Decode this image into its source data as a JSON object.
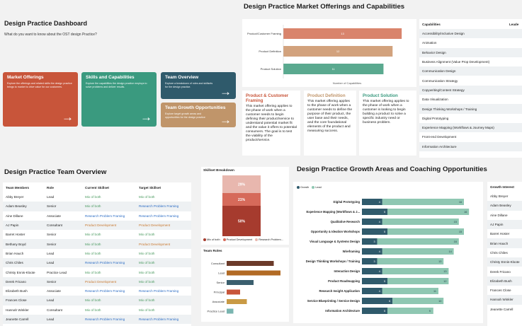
{
  "dashboard": {
    "title": "Design Practice Dashboard",
    "question": "What do you want to know about the OST design Practice?",
    "tiles": [
      {
        "title": "Market Offerings",
        "desc": "Explore the offerings and related skills the design practice brings to market to drive value for our customers.",
        "color": "#c8553a"
      },
      {
        "title": "Skills and Capabilities",
        "desc": "Explore the capabilities the design practice employs to solve problems and deliver results.",
        "color": "#3a9a7f"
      },
      {
        "title": "Team Overview",
        "desc": "Explore a breakdown of roles and skillsets for the design practice.",
        "color": "#2f5a6b"
      },
      {
        "title": "Team Growth Opportunities",
        "desc": "Explore target growth areas and opportunities for the design practice",
        "color": "#c0956a"
      }
    ],
    "arrow": "→"
  },
  "market": {
    "title": "Design Practice Market Offerings and Capabilities",
    "xlabel": "Number of Capabilities",
    "descriptions": [
      {
        "title": "Product & Customer Framing",
        "color": "#c8553a",
        "text": "This market offering applies to the phase of work when a customer needs to begin defining their product/service to understand potential market fit and the value it offers to potential consumers. The goal is to test the viability of the product/service."
      },
      {
        "title": "Product Definition",
        "color": "#c0956a",
        "text": "This market offering applies to the phase of work when a customer needs to define the purpose of their product, the user base and their needs, and the core foundational elements of the product and measuring success."
      },
      {
        "title": "Product Solution",
        "color": "#3a9a7f",
        "text": "This market offering applies to the phase of work when a customer is looking to begin building a product to solve a specific industry need or business problem."
      }
    ]
  },
  "capabilities": {
    "header": "Capabilities",
    "header2": "Leade",
    "items": [
      "Accessibility/Inclusive Design",
      "Animation",
      "Behavior Design",
      "Business Alignment (Value Prop Development)",
      "Communication Design",
      "Communication Strategy",
      "Copywriting/Content Strategy",
      "Data Visualization",
      "Design Thinking Workshops / Training",
      "Digital Prototyping",
      "Experience Mapping (Workflows & Journey Maps)",
      "Front-end Development",
      "Information Architecture"
    ]
  },
  "team": {
    "title": "Design Practice Team Overview",
    "columns": [
      "Team Members",
      "Role",
      "Current Skillset",
      "Target Skillset"
    ],
    "rows": [
      [
        "Abby Breyer",
        "Lead",
        "Mix of both",
        "Mix of both"
      ],
      [
        "Adam Beasley",
        "Senior",
        "Mix of both",
        "Research Problem Framing"
      ],
      [
        "Aine Dillane",
        "Associate",
        "Research Problem Framing",
        "Research Problem Framing"
      ],
      [
        "AJ Papin",
        "Consultant",
        "Product Development",
        "Product Development"
      ],
      [
        "Barret Hoster",
        "Senior",
        "Mix of both",
        "Mix of both"
      ],
      [
        "Bethany Boyd",
        "Senior",
        "Mix of both",
        "Product Development"
      ],
      [
        "Brian Hauch",
        "Lead",
        "Mix of both",
        "Mix of both"
      ],
      [
        "Chris Chiles",
        "Lead",
        "Research Problem Framing",
        "Mix of both"
      ],
      [
        "Christy Ennis-Kloote",
        "Practice Lead",
        "Mix of both",
        "Mix of both"
      ],
      [
        "Derek Fricano",
        "Senior",
        "Product Development",
        "Mix of both"
      ],
      [
        "Elizabeth Bush",
        "Associate",
        "Research Problem Framing",
        "Research Problem Framing"
      ],
      [
        "Frances Close",
        "Lead",
        "Mix of both",
        "Mix of both"
      ],
      [
        "Hannah Winkler",
        "Consultant",
        "Mix of both",
        "Mix of both"
      ],
      [
        "Jeanette Carrell",
        "Lead",
        "Research Problem Framing",
        "Research Problem Framing"
      ]
    ]
  },
  "skillset": {
    "title": "Skillset Breakdown",
    "legend": [
      "Mix of both",
      "Product Development",
      "Research Problem..."
    ]
  },
  "roles": {
    "title": "Team Roles"
  },
  "growth": {
    "title": "Design Practice Growth Areas and Coaching Opportunities",
    "legend": [
      "Growth",
      "Lead"
    ]
  },
  "growth_interest": {
    "header": "Growth Interest",
    "items": [
      "Abby Breyer",
      "Adam Beasley",
      "Aine Dillane",
      "AJ Papin",
      "Barret Hoster",
      "Brian Hauch",
      "Chris Chiles",
      "Christy Ennis-Kloote",
      "Derek Fricano",
      "Elizabeth Bush",
      "Frances Close",
      "Hannah Winkler",
      "Jeanette Carrell"
    ]
  },
  "chart_data": [
    {
      "type": "bar",
      "orientation": "horizontal",
      "categories": [
        "Product/Customer Framing",
        "Product Definition",
        "Product Solution"
      ],
      "values": [
        13,
        12,
        11
      ],
      "xlabel": "Number of Capabilities",
      "colors": [
        "#d9846c",
        "#d2a27d",
        "#5aa98f"
      ]
    },
    {
      "type": "bar",
      "stacked": true,
      "title": "Skillset Breakdown",
      "categories": [
        ""
      ],
      "series": [
        {
          "name": "Mix of both",
          "values": [
            50
          ],
          "color": "#a63b2e"
        },
        {
          "name": "Product Development",
          "values": [
            21
          ],
          "color": "#d66a5a"
        },
        {
          "name": "Research Problem...",
          "values": [
            29
          ],
          "color": "#e8b7ae"
        }
      ],
      "labels": [
        "50%",
        "21%",
        "29%"
      ]
    },
    {
      "type": "bar",
      "orientation": "horizontal",
      "title": "Team Roles",
      "categories": [
        "Consultant",
        "Lead",
        "Senior",
        "Principal",
        "Associate",
        "Practice Lead"
      ],
      "values": [
        7,
        8,
        4,
        2,
        3,
        1
      ],
      "colors": [
        "#6b3a2a",
        "#b26a24",
        "#3b5f6e",
        "#c8553a",
        "#c99a45",
        "#7ab5b0"
      ]
    },
    {
      "type": "bar",
      "orientation": "horizontal",
      "stacked": true,
      "title": "Design Practice Growth Areas and Coaching Opportunities",
      "categories": [
        "Digital Prototyping",
        "Experience Mapping (Workflows & J...",
        "Qualitative Research",
        "Opportunity & Ideation Workshops",
        "Visual Language & Systems Design",
        "Wireframing",
        "Design Thinking Workshops / Training",
        "Interaction Design",
        "Product Roadmapping",
        "Research Insight Application",
        "Service Blueprinting / Service Design",
        "Information Architecture"
      ],
      "series": [
        {
          "name": "Lead",
          "values": [
            4,
            5,
            4,
            5,
            3,
            4,
            3,
            4,
            5,
            4,
            6,
            5
          ],
          "color": "#2f5a6b"
        },
        {
          "name": "Growth",
          "values": [
            16,
            16,
            15,
            15,
            16,
            14,
            13,
            13,
            12,
            11,
            10,
            9
          ],
          "color": "#8fc7b2"
        }
      ]
    }
  ]
}
